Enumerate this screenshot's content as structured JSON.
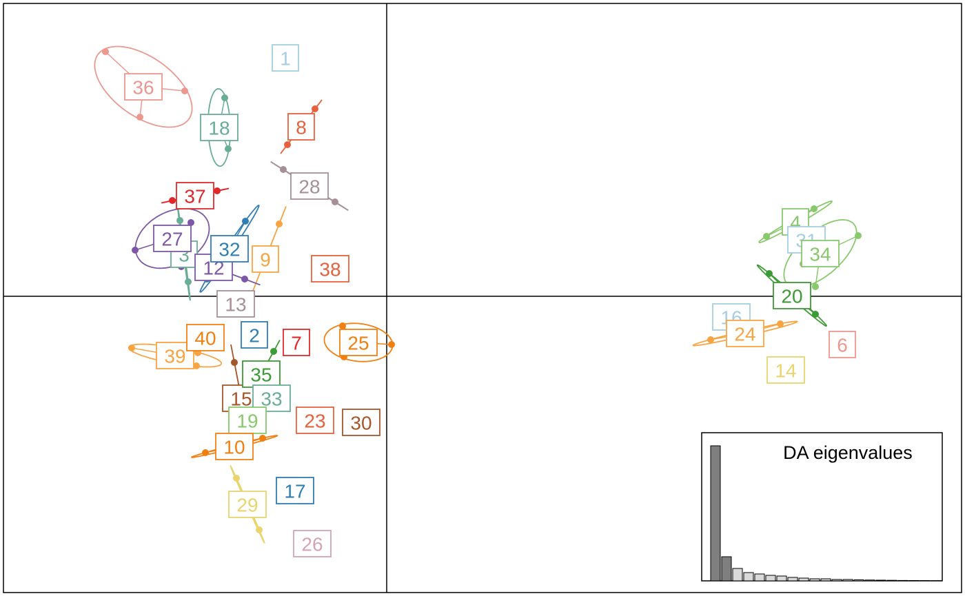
{
  "chart_data": [
    {
      "type": "scatter",
      "xlim": [
        -5.56,
        8.34
      ],
      "ylim": [
        -4.3,
        4.25
      ],
      "groups": [
        {
          "name": "1",
          "color": "#a6cee3",
          "x": -1.47,
          "y": 3.46,
          "points": {
            "x": [],
            "y": []
          }
        },
        {
          "name": "36",
          "color": "#ec978f",
          "x": -3.53,
          "y": 3.04,
          "points": {
            "x": [
              -4.08,
              -2.93,
              -3.58
            ],
            "y": [
              3.55,
              2.98,
              2.6
            ]
          }
        },
        {
          "name": "18",
          "color": "#6aad97",
          "x": -2.43,
          "y": 2.45,
          "points": {
            "x": [
              -2.35,
              -2.3
            ],
            "y": [
              2.88,
              2.14
            ]
          }
        },
        {
          "name": "8",
          "color": "#e8603c",
          "x": -1.24,
          "y": 2.46,
          "points": {
            "x": [
              -1.04,
              -1.44
            ],
            "y": [
              2.72,
              2.2
            ]
          }
        },
        {
          "name": "28",
          "color": "#a68f96",
          "x": -1.12,
          "y": 1.6,
          "points": {
            "x": [
              -1.5,
              -0.75
            ],
            "y": [
              1.84,
              1.37
            ]
          }
        },
        {
          "name": "37",
          "color": "#e0282b",
          "x": -2.78,
          "y": 1.46,
          "points": {
            "x": [
              -3.11,
              -2.46
            ],
            "y": [
              1.39,
              1.53
            ]
          }
        },
        {
          "name": "9",
          "color": "#f9a443",
          "x": -1.76,
          "y": 0.54,
          "points": {
            "x": [
              -1.56
            ],
            "y": [
              1.05
            ]
          }
        },
        {
          "name": "38",
          "color": "#e8603c",
          "x": -0.82,
          "y": 0.4,
          "points": {
            "x": [],
            "y": []
          }
        },
        {
          "name": "3",
          "color": "#6aad97",
          "x": -2.94,
          "y": 0.61,
          "points": {
            "x": [
              -3.0,
              -2.88
            ],
            "y": [
              1.1,
              0.21
            ]
          }
        },
        {
          "name": "27",
          "color": "#7e57a6",
          "x": -3.11,
          "y": 0.84,
          "points": {
            "x": [
              -2.84,
              -3.65,
              -2.98
            ],
            "y": [
              1.07,
              0.67,
              0.43
            ]
          }
        },
        {
          "name": "12",
          "color": "#7e57a6",
          "x": -2.51,
          "y": 0.42,
          "points": {
            "x": [
              -2.06
            ],
            "y": [
              0.25
            ]
          }
        },
        {
          "name": "32",
          "color": "#2f7eb4",
          "x": -2.28,
          "y": 0.69,
          "points": {
            "x": [
              -2.05,
              -2.61
            ],
            "y": [
              1.09,
              0.25
            ]
          }
        },
        {
          "name": "13",
          "color": "#a68f96",
          "x": -2.19,
          "y": -0.11,
          "points": {
            "x": [],
            "y": []
          }
        },
        {
          "name": "2",
          "color": "#2f7eb4",
          "x": -1.92,
          "y": -0.56,
          "points": {
            "x": [],
            "y": []
          }
        },
        {
          "name": "7",
          "color": "#e0282b",
          "x": -1.31,
          "y": -0.67,
          "points": {
            "x": [],
            "y": []
          }
        },
        {
          "name": "25",
          "color": "#f27f12",
          "x": -0.41,
          "y": -0.67,
          "points": {
            "x": [
              -0.64,
              0.07,
              -0.62
            ],
            "y": [
              -0.43,
              -0.7,
              -0.88
            ]
          }
        },
        {
          "name": "39",
          "color": "#f9a443",
          "x": -3.07,
          "y": -0.86,
          "points": {
            "x": [
              -3.7,
              -2.74,
              -2.76
            ],
            "y": [
              -0.75,
              -0.82,
              -1.01
            ]
          }
        },
        {
          "name": "40",
          "color": "#f27f12",
          "x": -2.63,
          "y": -0.6,
          "points": {
            "x": [],
            "y": []
          }
        },
        {
          "name": "15",
          "color": "#a6562a",
          "x": -2.11,
          "y": -1.48,
          "points": {
            "x": [
              -2.21
            ],
            "y": [
              -0.96
            ]
          }
        },
        {
          "name": "35",
          "color": "#3d9b35",
          "x": -1.82,
          "y": -1.13,
          "points": {
            "x": [
              -1.64
            ],
            "y": [
              -0.8
            ]
          }
        },
        {
          "name": "33",
          "color": "#6aad97",
          "x": -1.67,
          "y": -1.48,
          "points": {
            "x": [],
            "y": []
          }
        },
        {
          "name": "19",
          "color": "#88c96d",
          "x": -2.02,
          "y": -1.8,
          "points": {
            "x": [],
            "y": []
          }
        },
        {
          "name": "23",
          "color": "#e8603c",
          "x": -1.04,
          "y": -1.8,
          "points": {
            "x": [],
            "y": []
          }
        },
        {
          "name": "30",
          "color": "#a6562a",
          "x": -0.37,
          "y": -1.83,
          "points": {
            "x": [],
            "y": []
          }
        },
        {
          "name": "10",
          "color": "#f27f12",
          "x": -2.21,
          "y": -2.18,
          "points": {
            "x": [
              -2.63,
              -1.8
            ],
            "y": [
              -2.27,
              -2.06
            ]
          }
        },
        {
          "name": "29",
          "color": "#e9d46e",
          "x": -2.02,
          "y": -3.02,
          "points": {
            "x": [
              -2.18,
              -1.85
            ],
            "y": [
              -2.64,
              -3.39
            ]
          }
        },
        {
          "name": "17",
          "color": "#2f7eb4",
          "x": -1.33,
          "y": -2.82,
          "points": {
            "x": [],
            "y": []
          }
        },
        {
          "name": "26",
          "color": "#d4a3b5",
          "x": -1.08,
          "y": -3.59,
          "points": {
            "x": [],
            "y": []
          }
        },
        {
          "name": "4",
          "color": "#88c96d",
          "x": 5.93,
          "y": 1.08,
          "points": {
            "x": [
              6.2,
              5.51
            ],
            "y": [
              1.27,
              0.87
            ]
          }
        },
        {
          "name": "31",
          "color": "#a6cee3",
          "x": 6.09,
          "y": 0.82,
          "points": {
            "x": [],
            "y": []
          }
        },
        {
          "name": "34",
          "color": "#88c96d",
          "x": 6.29,
          "y": 0.62,
          "points": {
            "x": [
              6.84,
              6.04,
              6.22
            ],
            "y": [
              0.88,
              0.47,
              0.14
            ]
          }
        },
        {
          "name": "20",
          "color": "#3d9b35",
          "x": 5.88,
          "y": 0.01,
          "points": {
            "x": [
              5.55,
              6.22
            ],
            "y": [
              0.33,
              -0.26
            ]
          }
        },
        {
          "name": "16",
          "color": "#a6cee3",
          "x": 5.0,
          "y": -0.3,
          "points": {
            "x": [],
            "y": []
          }
        },
        {
          "name": "24",
          "color": "#f9a443",
          "x": 5.2,
          "y": -0.54,
          "points": {
            "x": [
              4.7,
              5.71
            ],
            "y": [
              -0.63,
              -0.4
            ]
          }
        },
        {
          "name": "6",
          "color": "#ec978f",
          "x": 6.61,
          "y": -0.7,
          "points": {
            "x": [],
            "y": []
          }
        },
        {
          "name": "14",
          "color": "#e9d46e",
          "x": 5.79,
          "y": -1.07,
          "points": {
            "x": [],
            "y": []
          }
        }
      ]
    },
    {
      "type": "bar",
      "title": "DA eigenvalues",
      "ylim": [
        0,
        215
      ],
      "values": [
        196,
        35,
        18,
        12,
        10,
        8,
        7,
        5,
        4,
        3,
        3,
        2,
        2,
        1.5,
        1.2,
        1,
        0.8,
        0.6,
        0.5,
        0.4,
        0.3
      ],
      "color": "#d9d9d9",
      "highlight_color": "#7f7f7f",
      "highlighted": 2
    }
  ]
}
